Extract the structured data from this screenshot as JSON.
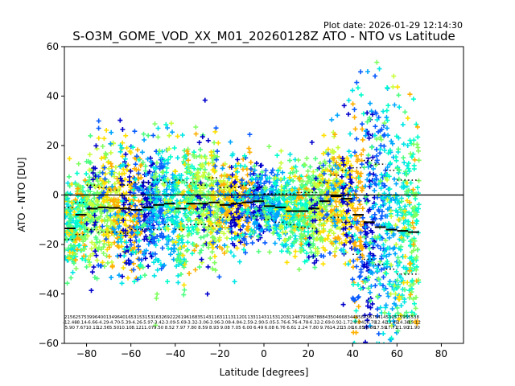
{
  "chart_data": {
    "type": "scatter",
    "plot_date": "Plot date: 2026-01-29 12:14:30",
    "title": "S-O3M_GOME_VOD_XX_M01_20260128Z ATO - NTO vs Latitude",
    "xlabel": "Latitude [degrees]",
    "ylabel": "ATO - NTO [DU]",
    "xlim": [
      -90,
      90
    ],
    "ylim": [
      -60,
      60
    ],
    "xticks": [
      -80,
      -60,
      -40,
      -20,
      0,
      20,
      40,
      60,
      80
    ],
    "yticks": [
      -60,
      -40,
      -20,
      0,
      20,
      40,
      60
    ],
    "zero_line": 0,
    "grid": false,
    "colors": {
      "palette": [
        "#0000cc",
        "#0a5cff",
        "#00a6ff",
        "#00e5e5",
        "#00ffcc",
        "#4dff80",
        "#80ff60",
        "#c8ff3c",
        "#ffe000",
        "#ffb000"
      ],
      "mean_line": "#000000"
    },
    "bin_centers": [
      -87.5,
      -82.5,
      -77.5,
      -72.5,
      -67.5,
      -62.5,
      -57.5,
      -52.5,
      -47.5,
      -42.5,
      -37.5,
      -32.5,
      -27.5,
      -22.5,
      -17.5,
      -12.5,
      -7.5,
      -2.5,
      2.5,
      7.5,
      12.5,
      17.5,
      22.5,
      27.5,
      32.5,
      37.5,
      42.5,
      47.5,
      52.5,
      57.5,
      62.5,
      67.5
    ],
    "bin_mean": [
      -13.5,
      -8.0,
      -5.5,
      -5.0,
      -5.2,
      -5.5,
      -6.0,
      -5.0,
      -4.0,
      -3.5,
      -5.5,
      -3.5,
      -3.5,
      -3.0,
      -4.0,
      -3.5,
      -3.0,
      -2.5,
      -4.5,
      -5.0,
      -6.5,
      -6.5,
      -5.5,
      -2.5,
      -0.5,
      -1.5,
      -8.0,
      -11.0,
      -13.0,
      -14.0,
      -14.5,
      -15.0
    ],
    "bin_upper": [
      -5.0,
      -3.0,
      4.0,
      3.0,
      2.0,
      4.0,
      5.0,
      5.0,
      6.0,
      5.0,
      6.0,
      5.0,
      4.0,
      7.0,
      3.0,
      3.0,
      4.0,
      3.0,
      0.5,
      0.5,
      0.5,
      1.0,
      1.0,
      5.0,
      8.0,
      10.0,
      11.0,
      14.0,
      12.5,
      10.0,
      6.0,
      6.0
    ],
    "bin_lower": [
      -18.0,
      -16.0,
      -14.0,
      -15.0,
      -15.0,
      -15.5,
      -14.0,
      -14.0,
      -14.0,
      -12.0,
      -14.0,
      -12.0,
      -12.0,
      -12.5,
      -9.0,
      -10.0,
      -9.0,
      -8.5,
      -10.0,
      -11.0,
      -12.0,
      -13.0,
      -13.5,
      -10.0,
      -9.0,
      -11.0,
      -24.0,
      -26.0,
      -28.0,
      -30.0,
      -32.0,
      -32.0
    ],
    "bin_stats": [
      {
        "count": "2156",
        "mean": "-12.48",
        "std": "5.90"
      },
      {
        "count": "2575",
        "mean": "-8.14",
        "std": "7.67"
      },
      {
        "count": "3996",
        "mean": "-6.66",
        "std": "10.11"
      },
      {
        "count": "4001",
        "mean": "-4.29",
        "std": "12.56"
      },
      {
        "count": "3496",
        "mean": "-4.70",
        "std": "5.50"
      },
      {
        "count": "4016",
        "mean": "-5.39",
        "std": "10.10"
      },
      {
        "count": "5315",
        "mean": "-4.26",
        "std": "8.12"
      },
      {
        "count": "3153",
        "mean": "-5.97",
        "std": "11.07"
      },
      {
        "count": "1632",
        "mean": "-3.42",
        "std": "9.50"
      },
      {
        "count": "6922",
        "mean": "-3.09",
        "std": "8.52"
      },
      {
        "count": "2619",
        "mean": "-5.69",
        "std": "7.97"
      },
      {
        "count": "6168",
        "mean": "-3.32",
        "std": "7.80"
      },
      {
        "count": "3514",
        "mean": "-3.06",
        "std": "8.59"
      },
      {
        "count": "3116",
        "mean": "-3.96",
        "std": "8.93"
      },
      {
        "count": "3111",
        "mean": "-3.08",
        "std": "9.08"
      },
      {
        "count": "3112",
        "mean": "-4.84",
        "std": "7.05"
      },
      {
        "count": "0113",
        "mean": "-2.59",
        "std": "6.00"
      },
      {
        "count": "3114",
        "mean": "-2.90",
        "std": "6.49"
      },
      {
        "count": "3115",
        "mean": "-5.05",
        "std": "6.08"
      },
      {
        "count": "3120",
        "mean": "-5.76",
        "std": "6.76"
      },
      {
        "count": "3114",
        "mean": "-6.76",
        "std": "6.61"
      },
      {
        "count": "8791",
        "mean": "-4.78",
        "std": "2.24"
      },
      {
        "count": "8878",
        "mean": "-6.32",
        "std": "7.80"
      },
      {
        "count": "8843",
        "mean": "-2.69",
        "std": "9.76"
      },
      {
        "count": "5046",
        "mean": "-0.92",
        "std": "14.21"
      },
      {
        "count": "6834",
        "mean": "-1.72",
        "std": "15.00"
      },
      {
        "count": "4858",
        "mean": "-8.04",
        "std": "16.85"
      },
      {
        "count": "7567",
        "mean": "-10.79",
        "std": "16.86"
      },
      {
        "count": "9414",
        "mean": "-12.41",
        "std": "17.59"
      },
      {
        "count": "5395",
        "mean": "-13.45",
        "std": "17.71"
      },
      {
        "count": "7595",
        "mean": "-14.38",
        "std": "21.90"
      },
      {
        "count": "5538",
        "mean": "-15.12",
        "std": "21.90"
      }
    ]
  }
}
